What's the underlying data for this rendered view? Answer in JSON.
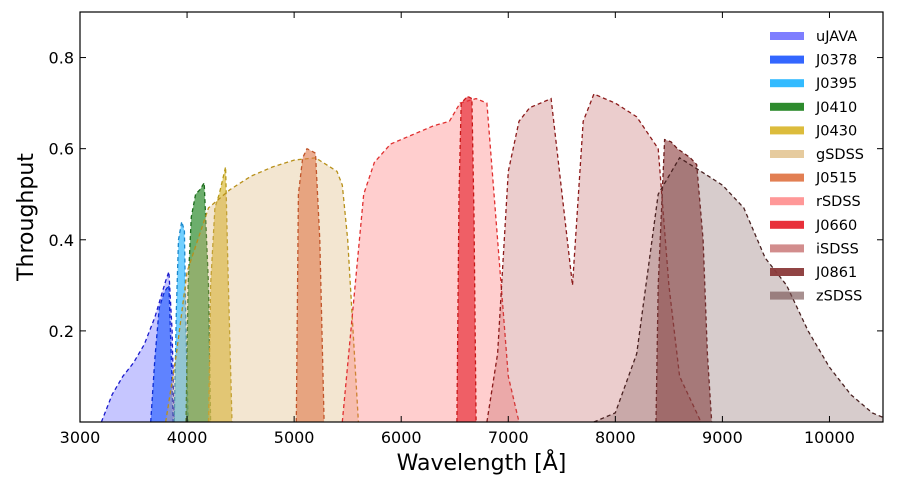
{
  "chart_data": {
    "type": "area",
    "title": "",
    "xlabel": "Wavelength [Å]",
    "ylabel": "Throughput",
    "xlim": [
      3000,
      10500
    ],
    "ylim": [
      0,
      0.9
    ],
    "xticks": [
      3000,
      4000,
      5000,
      6000,
      7000,
      8000,
      9000,
      10000
    ],
    "yticks": [
      0.2,
      0.4,
      0.6,
      0.8
    ],
    "ytick_labels": [
      "0.2",
      "0.4",
      "0.6",
      "0.8"
    ],
    "grid": false,
    "legend": "top-right",
    "series": [
      {
        "name": "uJAVA",
        "color": "#3333ff",
        "edge": "#1a1acc",
        "alpha": 0.28,
        "x": [
          3200,
          3300,
          3400,
          3500,
          3600,
          3700,
          3750,
          3800,
          3830,
          3860,
          3880
        ],
        "y": [
          0,
          0.06,
          0.1,
          0.13,
          0.17,
          0.23,
          0.27,
          0.31,
          0.33,
          0.2,
          0
        ]
      },
      {
        "name": "J0378",
        "color": "#3366ff",
        "edge": "#0b2dd6",
        "alpha": 0.7,
        "x": [
          3660,
          3700,
          3740,
          3780,
          3800,
          3830,
          3850,
          3870
        ],
        "y": [
          0,
          0.14,
          0.25,
          0.28,
          0.29,
          0.3,
          0.16,
          0
        ]
      },
      {
        "name": "J0395",
        "color": "#33bbff",
        "edge": "#1a88cc",
        "alpha": 0.7,
        "x": [
          3880,
          3900,
          3920,
          3950,
          3975,
          3990,
          4010
        ],
        "y": [
          0,
          0.25,
          0.4,
          0.44,
          0.42,
          0.2,
          0
        ]
      },
      {
        "name": "J0410",
        "color": "#2e8b2e",
        "edge": "#1b6b1b",
        "alpha": 0.7,
        "x": [
          3990,
          4010,
          4040,
          4080,
          4120,
          4160,
          4200,
          4220
        ],
        "y": [
          0,
          0.3,
          0.45,
          0.5,
          0.51,
          0.525,
          0.3,
          0
        ]
      },
      {
        "name": "J0430",
        "color": "#dcbc3c",
        "edge": "#b89a1a",
        "alpha": 0.7,
        "x": [
          4200,
          4220,
          4260,
          4300,
          4330,
          4360,
          4380,
          4420
        ],
        "y": [
          0,
          0.3,
          0.47,
          0.5,
          0.53,
          0.56,
          0.35,
          0
        ]
      },
      {
        "name": "gSDSS",
        "color": "#d9b26f",
        "edge": "#b8901a",
        "alpha": 0.32,
        "x": [
          3800,
          3900,
          4000,
          4200,
          4400,
          4600,
          4800,
          5000,
          5200,
          5400,
          5450,
          5500,
          5600
        ],
        "y": [
          0,
          0.15,
          0.33,
          0.47,
          0.51,
          0.54,
          0.56,
          0.575,
          0.58,
          0.55,
          0.52,
          0.4,
          0
        ]
      },
      {
        "name": "J0515",
        "color": "#e0784a",
        "edge": "#c0552a",
        "alpha": 0.6,
        "x": [
          5020,
          5040,
          5080,
          5120,
          5160,
          5200,
          5240,
          5280
        ],
        "y": [
          0,
          0.5,
          0.58,
          0.6,
          0.595,
          0.59,
          0.4,
          0
        ]
      },
      {
        "name": "rSDSS",
        "color": "#ff6666",
        "edge": "#e03030",
        "alpha": 0.32,
        "x": [
          5450,
          5550,
          5650,
          5750,
          5900,
          6100,
          6300,
          6450,
          6550,
          6700,
          6800,
          6900,
          7000,
          7100
        ],
        "y": [
          0,
          0.25,
          0.5,
          0.57,
          0.61,
          0.63,
          0.65,
          0.66,
          0.7,
          0.71,
          0.7,
          0.4,
          0.1,
          0
        ]
      },
      {
        "name": "J0660",
        "color": "#e8303a",
        "edge": "#c81818",
        "alpha": 0.7,
        "x": [
          6520,
          6540,
          6560,
          6620,
          6660,
          6680,
          6700
        ],
        "y": [
          0,
          0.5,
          0.7,
          0.715,
          0.71,
          0.45,
          0
        ]
      },
      {
        "name": "iSDSS",
        "color": "#b84a4a",
        "edge": "#8b1a1a",
        "alpha": 0.28,
        "x": [
          6800,
          6900,
          7000,
          7100,
          7200,
          7400,
          7600,
          7700,
          7800,
          7900,
          8000,
          8200,
          8400,
          8500,
          8600,
          8800
        ],
        "y": [
          0,
          0.15,
          0.55,
          0.66,
          0.69,
          0.71,
          0.3,
          0.66,
          0.72,
          0.71,
          0.7,
          0.67,
          0.6,
          0.3,
          0.1,
          0
        ]
      },
      {
        "name": "J0861",
        "color": "#8b3a3a",
        "edge": "#6b1a1a",
        "alpha": 0.6,
        "x": [
          8380,
          8400,
          8460,
          8520,
          8580,
          8640,
          8700,
          8760,
          8820,
          8860,
          8900
        ],
        "y": [
          0,
          0.3,
          0.62,
          0.615,
          0.6,
          0.59,
          0.58,
          0.565,
          0.4,
          0.15,
          0
        ]
      },
      {
        "name": "zSDSS",
        "color": "#7a5555",
        "edge": "#4a2222",
        "alpha": 0.3,
        "x": [
          7800,
          8000,
          8200,
          8400,
          8600,
          8800,
          9000,
          9200,
          9400,
          9600,
          9800,
          10000,
          10200,
          10400,
          10500
        ],
        "y": [
          0,
          0.02,
          0.15,
          0.5,
          0.58,
          0.55,
          0.52,
          0.47,
          0.36,
          0.3,
          0.2,
          0.12,
          0.06,
          0.02,
          0.01
        ]
      }
    ]
  }
}
